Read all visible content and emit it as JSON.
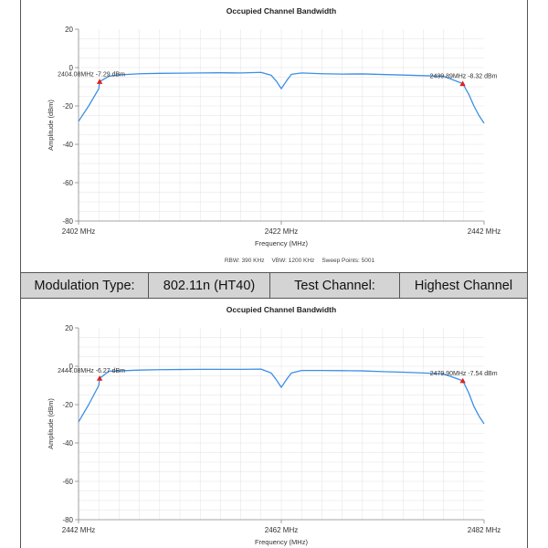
{
  "info_row": {
    "modulation_label": "Modulation Type:",
    "modulation_value": "802.11n (HT40)",
    "channel_label": "Test Channel:",
    "channel_value": "Highest Channel"
  },
  "colors": {
    "trace": "#3d8ee6",
    "marker": "#e02020",
    "grid": "#e2e2e2",
    "info_bg": "#d4d4d4"
  },
  "chart_data": [
    {
      "type": "line",
      "title": "Occupied Channel Bandwidth",
      "xlabel": "Frequency (MHz)",
      "ylabel": "Amplitude (dBm)",
      "xlim": [
        2402,
        2442
      ],
      "ylim": [
        -80,
        20
      ],
      "x_ticks": [
        "2402 MHz",
        "2422 MHz",
        "2442 MHz"
      ],
      "y_ticks": [
        "20",
        "0",
        "-20",
        "-40",
        "-60",
        "-80"
      ],
      "grid": true,
      "footer": {
        "rbw": "RBW: 390 KHz",
        "vbw": "VBW: 1200 KHz",
        "sweep": "Sweep Points: 5001"
      },
      "x": [
        2402,
        2403,
        2404,
        2404.08,
        2405,
        2406,
        2408,
        2410,
        2412,
        2414,
        2416,
        2418,
        2420,
        2421,
        2421.5,
        2422,
        2422.5,
        2423,
        2424,
        2426,
        2428,
        2430,
        2432,
        2434,
        2436,
        2438,
        2439.89,
        2440.5,
        2441,
        2441.5,
        2442
      ],
      "y": [
        -28,
        -20,
        -11,
        -7.29,
        -4.5,
        -3.8,
        -3.2,
        -3,
        -2.9,
        -2.8,
        -2.7,
        -2.8,
        -2.5,
        -4,
        -7,
        -11,
        -7,
        -3.5,
        -2.8,
        -3.2,
        -3.4,
        -3.3,
        -3.6,
        -3.9,
        -4.2,
        -4.5,
        -8.32,
        -14,
        -20,
        -25,
        -29
      ],
      "markers": [
        {
          "x": 2404.08,
          "y": -7.29,
          "label": "2404.08MHz  -7.29 dBm"
        },
        {
          "x": 2439.89,
          "y": -8.32,
          "label": "2439.89MHz  -8.32 dBm"
        }
      ]
    },
    {
      "type": "line",
      "title": "Occupied Channel Bandwidth",
      "xlabel": "Frequency (MHz)",
      "ylabel": "Amplitude (dBm)",
      "xlim": [
        2442,
        2482
      ],
      "ylim": [
        -80,
        20
      ],
      "x_ticks": [
        "2442 MHz",
        "2462 MHz",
        "2482 MHz"
      ],
      "y_ticks": [
        "20",
        "0",
        "-20",
        "-40",
        "-60",
        "-80"
      ],
      "grid": true,
      "x": [
        2442,
        2443,
        2444,
        2444.08,
        2445,
        2446,
        2448,
        2450,
        2452,
        2454,
        2456,
        2458,
        2460,
        2461,
        2461.5,
        2462,
        2462.5,
        2463,
        2464,
        2466,
        2468,
        2470,
        2472,
        2474,
        2476,
        2478,
        2479.9,
        2480.5,
        2481,
        2481.5,
        2482
      ],
      "y": [
        -29,
        -20,
        -10,
        -6.27,
        -2.6,
        -2.4,
        -2,
        -1.8,
        -1.7,
        -1.6,
        -1.6,
        -1.6,
        -1.5,
        -3.5,
        -7,
        -11,
        -7,
        -3.5,
        -2.2,
        -2.2,
        -2.3,
        -2.4,
        -2.8,
        -3.1,
        -3.5,
        -4,
        -7.54,
        -14,
        -21,
        -26,
        -30
      ],
      "markers": [
        {
          "x": 2444.08,
          "y": -6.27,
          "label": "2444.08MHz  -6.27 dBm"
        },
        {
          "x": 2479.9,
          "y": -7.54,
          "label": "2479.90MHz  -7.54 dBm"
        }
      ]
    }
  ]
}
